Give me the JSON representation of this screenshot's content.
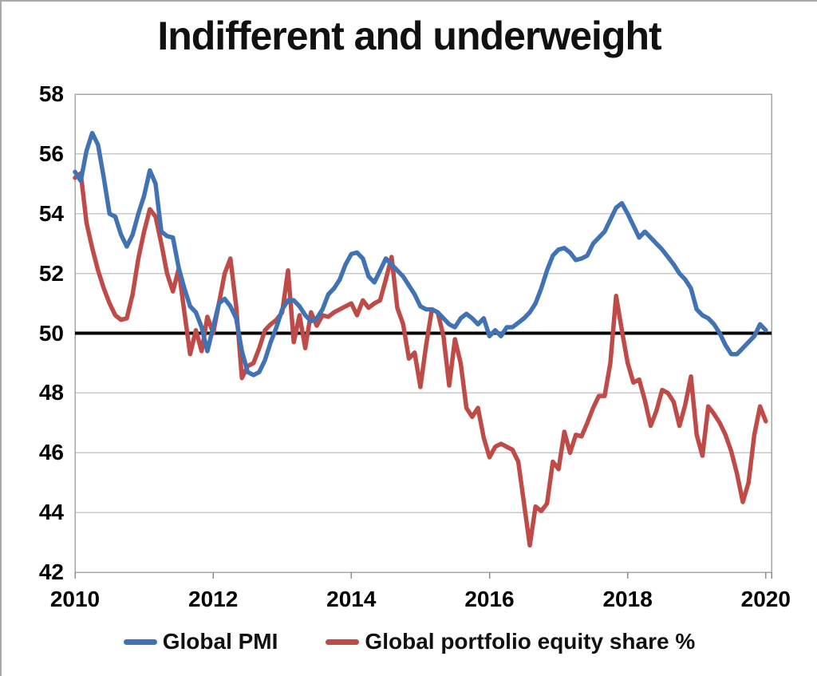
{
  "chart_data": {
    "type": "line",
    "title": "Indifferent and underweight",
    "xlabel": "",
    "ylabel": "",
    "xlim": [
      2010,
      2020.083
    ],
    "ylim": [
      42,
      58
    ],
    "x_ticks": [
      2010,
      2012,
      2014,
      2016,
      2018,
      2020
    ],
    "y_ticks": [
      42,
      44,
      46,
      48,
      50,
      52,
      54,
      56,
      58
    ],
    "grid": true,
    "grid_color": "#c9c9c9",
    "border_color": "#a6a6a6",
    "tick_color": "#8c8c8c",
    "legend_position": "bottom",
    "x_start": 2010,
    "points_per_year": 12,
    "reference_line": {
      "value": 50,
      "color": "#000000",
      "width": 4
    },
    "series": [
      {
        "name": "Global PMI",
        "color": "#4172b3",
        "line_width": 5.5,
        "values": [
          55.4,
          55.1,
          56.1,
          56.7,
          56.3,
          55.2,
          54.0,
          53.9,
          53.3,
          52.9,
          53.3,
          54.0,
          54.6,
          55.45,
          55.0,
          53.4,
          53.25,
          53.2,
          52.2,
          51.5,
          50.9,
          50.7,
          50.2,
          49.4,
          50.2,
          51.0,
          51.15,
          50.9,
          50.5,
          49.4,
          48.7,
          48.6,
          48.7,
          49.1,
          49.7,
          50.2,
          50.8,
          51.1,
          51.1,
          50.9,
          50.6,
          50.4,
          50.5,
          50.8,
          51.3,
          51.5,
          51.8,
          52.3,
          52.65,
          52.7,
          52.5,
          51.9,
          51.7,
          52.1,
          52.5,
          52.3,
          52.1,
          51.9,
          51.6,
          51.3,
          50.9,
          50.8,
          50.8,
          50.7,
          50.5,
          50.3,
          50.2,
          50.5,
          50.65,
          50.5,
          50.3,
          50.5,
          49.9,
          50.1,
          49.9,
          50.2,
          50.2,
          50.35,
          50.5,
          50.7,
          51.0,
          51.5,
          52.1,
          52.6,
          52.8,
          52.85,
          52.7,
          52.45,
          52.5,
          52.6,
          53.0,
          53.2,
          53.4,
          53.8,
          54.2,
          54.35,
          54.0,
          53.6,
          53.2,
          53.4,
          53.2,
          53.0,
          52.8,
          52.55,
          52.3,
          52.0,
          51.8,
          51.5,
          50.8,
          50.6,
          50.5,
          50.3,
          50.0,
          49.6,
          49.3,
          49.3,
          49.5,
          49.7,
          49.9,
          50.3,
          50.1
        ]
      },
      {
        "name": "Global portfolio equity share %",
        "color": "#bf4b48",
        "line_width": 5.5,
        "values": [
          55.2,
          55.35,
          53.7,
          52.85,
          52.1,
          51.5,
          51.0,
          50.6,
          50.45,
          50.5,
          51.3,
          52.5,
          53.4,
          54.15,
          53.9,
          53.0,
          52.0,
          51.4,
          52.15,
          50.7,
          49.3,
          50.1,
          49.4,
          50.55,
          50.0,
          51.0,
          52.0,
          52.5,
          50.9,
          48.5,
          48.9,
          49.0,
          49.5,
          50.1,
          50.3,
          50.45,
          50.7,
          52.1,
          49.7,
          50.6,
          49.5,
          50.7,
          50.25,
          50.6,
          50.55,
          50.7,
          50.8,
          50.9,
          51.0,
          50.6,
          51.1,
          50.85,
          51.0,
          51.1,
          51.8,
          52.55,
          50.85,
          50.3,
          49.15,
          49.35,
          48.2,
          49.6,
          50.8,
          50.7,
          49.9,
          48.25,
          49.8,
          49.0,
          47.5,
          47.2,
          47.5,
          46.5,
          45.85,
          46.2,
          46.3,
          46.2,
          46.1,
          45.7,
          44.3,
          42.9,
          44.2,
          44.05,
          44.3,
          45.7,
          45.45,
          46.7,
          46.0,
          46.6,
          46.55,
          47.0,
          47.5,
          47.9,
          47.9,
          49.0,
          51.25,
          50.1,
          49.0,
          48.35,
          48.45,
          47.75,
          46.9,
          47.4,
          48.1,
          48.0,
          47.7,
          46.9,
          47.6,
          48.55,
          46.6,
          45.9,
          47.55,
          47.3,
          47.0,
          46.6,
          46.05,
          45.3,
          44.35,
          45.0,
          46.6,
          47.55,
          47.05
        ]
      }
    ]
  }
}
